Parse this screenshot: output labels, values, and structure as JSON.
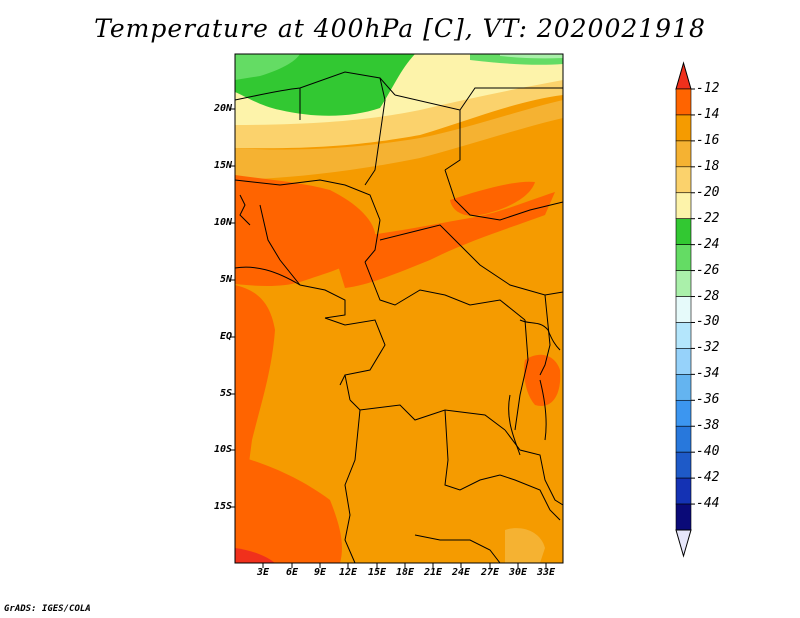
{
  "title": "Temperature at 400hPa [C], VT: 2020021918",
  "credit": "GrADS: IGES/COLA",
  "lat_labels": [
    "20N",
    "15N",
    "10N",
    "5N",
    "EQ",
    "5S",
    "10S",
    "15S"
  ],
  "lon_labels": [
    "3E",
    "6E",
    "9E",
    "12E",
    "15E",
    "18E",
    "21E",
    "24E",
    "27E",
    "30E",
    "33E"
  ],
  "colorbar": {
    "labels": [
      "-12",
      "-14",
      "-16",
      "-18",
      "-20",
      "-22",
      "-24",
      "-26",
      "-28",
      "-30",
      "-32",
      "-34",
      "-36",
      "-38",
      "-40",
      "-42",
      "-44"
    ],
    "colors": [
      "#f0301c",
      "#ff6400",
      "#f59b00",
      "#f5b232",
      "#fbd26c",
      "#fdf3aa",
      "#32c832",
      "#64dc64",
      "#aaf0aa",
      "#e6fafa",
      "#b4e6fc",
      "#96d2fa",
      "#64b4f0",
      "#3c96f0",
      "#2878dc",
      "#1e5ac8",
      "#1432b4",
      "#0a0a78",
      "#e6e6fa"
    ]
  },
  "colors": {
    "background": "#ffffff",
    "warmest": "#f0301c",
    "warm": "#ff6400",
    "mid": "#f59b00",
    "cool_green": "#32c832"
  }
}
